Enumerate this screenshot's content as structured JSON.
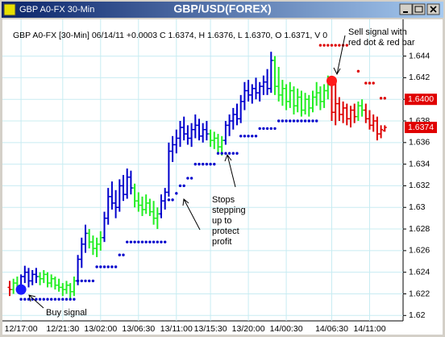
{
  "chart_data": {
    "type": "ohlc",
    "window_title": "GBP A0-FX 30-Min",
    "title": "GBP/USD(FOREX)",
    "info": "GBP A0-FX [30-Min] 06/14/11  +0.0003 C 1.6374, H 1.6376, L 1.6370, O 1.6371, V 0",
    "categories": [
      null,
      null,
      null,
      "12/17:00",
      null,
      null,
      null,
      null,
      null,
      null,
      null,
      null,
      null,
      null,
      "12/21:30",
      null,
      null,
      null,
      null,
      null,
      null,
      null,
      null,
      null,
      "13/02:00",
      null,
      null,
      null,
      null,
      null,
      null,
      null,
      null,
      null,
      "13/06:30",
      null,
      null,
      null,
      null,
      null,
      null,
      null,
      null,
      null,
      "13/11:00",
      null,
      null,
      null,
      null,
      null,
      null,
      null,
      null,
      "13/15:30",
      null,
      null,
      null,
      null,
      null,
      null,
      null,
      null,
      null,
      "13/20:00",
      null,
      null,
      null,
      null,
      null,
      null,
      null,
      null,
      null,
      "14/00:30",
      null,
      null,
      null,
      null,
      null,
      null,
      null,
      null,
      null,
      null,
      null,
      "14/06:30",
      null,
      null,
      null,
      null,
      null,
      null,
      null,
      null,
      null,
      "14/11:00",
      null,
      null,
      null,
      null
    ],
    "ohlc": [
      [
        1.6226,
        1.6232,
        1.6218,
        1.6224
      ],
      [
        1.6224,
        1.6234,
        1.622,
        1.623
      ],
      [
        1.623,
        1.6236,
        1.6222,
        1.6226
      ],
      [
        1.6226,
        1.6238,
        1.6222,
        1.6236
      ],
      [
        1.6236,
        1.6246,
        1.623,
        1.624
      ],
      [
        1.624,
        1.6244,
        1.6226,
        1.6232
      ],
      [
        1.6232,
        1.6242,
        1.6228,
        1.6238
      ],
      [
        1.6238,
        1.6244,
        1.623,
        1.6236
      ],
      [
        1.6236,
        1.624,
        1.6228,
        1.6234
      ],
      [
        1.6234,
        1.6242,
        1.623,
        1.6238
      ],
      [
        1.6238,
        1.624,
        1.6226,
        1.623
      ],
      [
        1.623,
        1.6238,
        1.6226,
        1.6234
      ],
      [
        1.6234,
        1.6236,
        1.6224,
        1.6228
      ],
      [
        1.6228,
        1.6234,
        1.6222,
        1.6226
      ],
      [
        1.6226,
        1.623,
        1.6218,
        1.6224
      ],
      [
        1.6224,
        1.6232,
        1.622,
        1.6228
      ],
      [
        1.6228,
        1.623,
        1.6216,
        1.6222
      ],
      [
        1.6222,
        1.6236,
        1.6218,
        1.6232
      ],
      [
        1.6232,
        1.6256,
        1.6228,
        1.6252
      ],
      [
        1.6252,
        1.6272,
        1.6244,
        1.6266
      ],
      [
        1.6266,
        1.6284,
        1.6258,
        1.6276
      ],
      [
        1.6276,
        1.628,
        1.6262,
        1.6268
      ],
      [
        1.6268,
        1.6274,
        1.6256,
        1.6262
      ],
      [
        1.6262,
        1.6272,
        1.6254,
        1.6266
      ],
      [
        1.6266,
        1.6278,
        1.626,
        1.6272
      ],
      [
        1.6272,
        1.6296,
        1.6268,
        1.629
      ],
      [
        1.629,
        1.6318,
        1.6284,
        1.631
      ],
      [
        1.631,
        1.6324,
        1.6298,
        1.6304
      ],
      [
        1.6304,
        1.6316,
        1.629,
        1.63
      ],
      [
        1.63,
        1.6326,
        1.6296,
        1.632
      ],
      [
        1.632,
        1.633,
        1.6306,
        1.6312
      ],
      [
        1.6312,
        1.6336,
        1.6308,
        1.6328
      ],
      [
        1.6328,
        1.6334,
        1.6312,
        1.6318
      ],
      [
        1.6318,
        1.6322,
        1.63,
        1.6306
      ],
      [
        1.6306,
        1.6314,
        1.6296,
        1.6302
      ],
      [
        1.6302,
        1.631,
        1.6292,
        1.6298
      ],
      [
        1.6298,
        1.6312,
        1.6294,
        1.6304
      ],
      [
        1.6304,
        1.6308,
        1.6292,
        1.6296
      ],
      [
        1.6296,
        1.6306,
        1.6284,
        1.629
      ],
      [
        1.629,
        1.63,
        1.628,
        1.6294
      ],
      [
        1.6294,
        1.6312,
        1.629,
        1.6306
      ],
      [
        1.6306,
        1.6318,
        1.6298,
        1.6314
      ],
      [
        1.6314,
        1.636,
        1.631,
        1.6352
      ],
      [
        1.6352,
        1.6366,
        1.6342,
        1.6358
      ],
      [
        1.6358,
        1.6372,
        1.635,
        1.6364
      ],
      [
        1.6364,
        1.638,
        1.6356,
        1.6374
      ],
      [
        1.6374,
        1.6384,
        1.6362,
        1.6368
      ],
      [
        1.6368,
        1.6376,
        1.6358,
        1.6364
      ],
      [
        1.6364,
        1.6378,
        1.6356,
        1.6372
      ],
      [
        1.6372,
        1.6386,
        1.6364,
        1.6376
      ],
      [
        1.6376,
        1.6382,
        1.6362,
        1.6366
      ],
      [
        1.6366,
        1.6378,
        1.636,
        1.6372
      ],
      [
        1.6372,
        1.638,
        1.6362,
        1.6368
      ],
      [
        1.6368,
        1.6372,
        1.6356,
        1.6362
      ],
      [
        1.6362,
        1.637,
        1.6354,
        1.6364
      ],
      [
        1.6364,
        1.6368,
        1.635,
        1.6356
      ],
      [
        1.6356,
        1.6366,
        1.6348,
        1.6362
      ],
      [
        1.6362,
        1.638,
        1.6358,
        1.6376
      ],
      [
        1.6376,
        1.6386,
        1.6366,
        1.638
      ],
      [
        1.638,
        1.6392,
        1.6372,
        1.6386
      ],
      [
        1.6386,
        1.6396,
        1.6376,
        1.6382
      ],
      [
        1.6382,
        1.6404,
        1.6378,
        1.6398
      ],
      [
        1.6398,
        1.6416,
        1.639,
        1.6408
      ],
      [
        1.6408,
        1.6418,
        1.6398,
        1.6404
      ],
      [
        1.6404,
        1.6414,
        1.6396,
        1.641
      ],
      [
        1.641,
        1.642,
        1.64,
        1.6406
      ],
      [
        1.6406,
        1.6416,
        1.6398,
        1.6412
      ],
      [
        1.6412,
        1.6422,
        1.6404,
        1.6416
      ],
      [
        1.6416,
        1.6428,
        1.6404,
        1.641
      ],
      [
        1.641,
        1.6444,
        1.6406,
        1.6436
      ],
      [
        1.6436,
        1.644,
        1.6404,
        1.6412
      ],
      [
        1.6412,
        1.643,
        1.6398,
        1.6404
      ],
      [
        1.6404,
        1.6418,
        1.6394,
        1.641
      ],
      [
        1.641,
        1.6414,
        1.639,
        1.6398
      ],
      [
        1.6398,
        1.6416,
        1.6392,
        1.6408
      ],
      [
        1.6408,
        1.6412,
        1.6386,
        1.6394
      ],
      [
        1.6394,
        1.641,
        1.6388,
        1.6402
      ],
      [
        1.6402,
        1.6408,
        1.6384,
        1.639
      ],
      [
        1.639,
        1.6406,
        1.6386,
        1.64
      ],
      [
        1.64,
        1.6404,
        1.6384,
        1.6392
      ],
      [
        1.6392,
        1.6408,
        1.6388,
        1.6402
      ],
      [
        1.6402,
        1.6416,
        1.6394,
        1.6406
      ],
      [
        1.6406,
        1.6412,
        1.639,
        1.6398
      ],
      [
        1.6398,
        1.6414,
        1.6392,
        1.6408
      ],
      [
        1.6408,
        1.6422,
        1.64,
        1.6414
      ],
      [
        1.6414,
        1.642,
        1.638,
        1.6388
      ],
      [
        1.6388,
        1.6418,
        1.6376,
        1.6396
      ],
      [
        1.6396,
        1.6402,
        1.638,
        1.6386
      ],
      [
        1.6386,
        1.6398,
        1.6378,
        1.6392
      ],
      [
        1.6392,
        1.6396,
        1.6376,
        1.6382
      ],
      [
        1.6382,
        1.6394,
        1.6374,
        1.639
      ],
      [
        1.639,
        1.6396,
        1.6378,
        1.6384
      ],
      [
        1.6384,
        1.6398,
        1.638,
        1.6394
      ],
      [
        1.6394,
        1.64,
        1.6384,
        1.639
      ],
      [
        1.639,
        1.6396,
        1.6378,
        1.6382
      ],
      [
        1.6382,
        1.639,
        1.6372,
        1.6376
      ],
      [
        1.6376,
        1.6386,
        1.637,
        1.638
      ],
      [
        1.638,
        1.6384,
        1.6362,
        1.6368
      ],
      [
        1.6368,
        1.6376,
        1.6364,
        1.6372
      ],
      [
        1.6371,
        1.6376,
        1.637,
        1.6374
      ]
    ],
    "palette": {
      "B": "#0000cc",
      "G": "#22ee22",
      "R": "#dd0000"
    },
    "bar_colors": "RGGBBBBBGGGGGGGGGGBBBGGGGBBBBBBBBGGGGGGGBBBBBBBBBBBBBGGGGBBBBBBBBBBBBBGGGGGGGGGGGGGGGRRRRRRRGGRRRRRR",
    "buy_stops": {
      "color": "#0000cc",
      "values": [
        null,
        null,
        null,
        1.6215,
        1.6215,
        1.6215,
        1.6215,
        1.6215,
        1.6215,
        1.6215,
        1.6215,
        1.6215,
        1.6215,
        1.6215,
        1.6215,
        1.6215,
        1.6215,
        1.6215,
        1.6232,
        1.6232,
        1.6232,
        1.6232,
        1.6232,
        1.6245,
        1.6245,
        1.6245,
        1.6245,
        1.6245,
        1.6245,
        1.6256,
        1.6256,
        1.6268,
        1.6268,
        1.6268,
        1.6268,
        1.6268,
        1.6268,
        1.6268,
        1.6268,
        1.6268,
        1.6268,
        1.6268,
        1.6307,
        1.6307,
        1.6313,
        1.632,
        1.632,
        1.6327,
        1.6327,
        1.634,
        1.634,
        1.634,
        1.634,
        1.634,
        1.634,
        1.635,
        1.635,
        1.635,
        1.635,
        1.635,
        1.635,
        1.6366,
        1.6366,
        1.6366,
        1.6366,
        1.6366,
        1.6373,
        1.6373,
        1.6373,
        1.6373,
        1.6373,
        1.638,
        1.638,
        1.638,
        1.638,
        1.638,
        1.638,
        1.638,
        1.638,
        1.638,
        1.638,
        1.638,
        null,
        null,
        null,
        null,
        null,
        null,
        null,
        null,
        null,
        null,
        null,
        null,
        null,
        null,
        null,
        null,
        null,
        null
      ]
    },
    "sell_stops": {
      "color": "#dd0000",
      "values": [
        null,
        null,
        null,
        null,
        null,
        null,
        null,
        null,
        null,
        null,
        null,
        null,
        null,
        null,
        null,
        null,
        null,
        null,
        null,
        null,
        null,
        null,
        null,
        null,
        null,
        null,
        null,
        null,
        null,
        null,
        null,
        null,
        null,
        null,
        null,
        null,
        null,
        null,
        null,
        null,
        null,
        null,
        null,
        null,
        null,
        null,
        null,
        null,
        null,
        null,
        null,
        null,
        null,
        null,
        null,
        null,
        null,
        null,
        null,
        null,
        null,
        null,
        null,
        null,
        null,
        null,
        null,
        null,
        null,
        null,
        null,
        null,
        null,
        null,
        null,
        null,
        null,
        null,
        null,
        null,
        null,
        null,
        1.645,
        1.645,
        1.645,
        1.645,
        1.645,
        1.645,
        1.645,
        1.645,
        null,
        null,
        1.6426,
        null,
        1.6415,
        1.6415,
        1.6415,
        null,
        1.6401,
        1.6401
      ]
    },
    "signals": [
      {
        "index": 3,
        "value": 1.6224,
        "color": "#1a1aff"
      },
      {
        "index": 85,
        "value": 1.6417,
        "color": "#ff1a1a"
      }
    ],
    "price_tags": [
      {
        "value": 1.64,
        "label": "1.6400"
      },
      {
        "value": 1.6374,
        "label": "1.6374"
      }
    ],
    "annotations": [
      {
        "lines": [
          "Sell signal with",
          "red dot & red bar"
        ]
      },
      {
        "lines": [
          "Stops",
          "stepping",
          "up to",
          "protect",
          "profit"
        ]
      },
      {
        "lines": [
          "Buy signal"
        ]
      }
    ],
    "ylim": [
      1.6195,
      1.6474
    ],
    "yticks": [
      1.62,
      1.622,
      1.624,
      1.626,
      1.628,
      1.63,
      1.632,
      1.634,
      1.636,
      1.638,
      1.64,
      1.642,
      1.644
    ],
    "grid": true
  }
}
